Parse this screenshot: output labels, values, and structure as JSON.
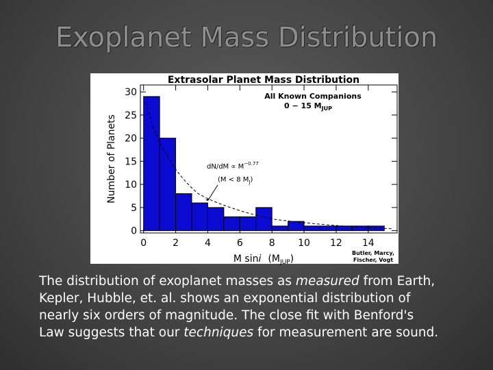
{
  "slide_title": "Exoplanet Mass Distribution",
  "caption": [
    [
      "The distribution of exoplanet masses as ",
      "measured",
      " from Earth,"
    ],
    [
      "Kepler, Hubble, et. al. shows an exponential distribution of"
    ],
    [
      "nearly six orders of magnitude. The close fit with Benford's"
    ],
    [
      "Law suggests that our ",
      "techniques",
      " for measurement are sound."
    ]
  ],
  "chart_data": {
    "type": "histogram",
    "title": "Extrasolar Planet Mass Distribution",
    "x_label": [
      "M sin",
      "i",
      "(M",
      "JUP",
      ")"
    ],
    "y_label": "Number of Planets",
    "annotations": {
      "companions": "All Known Companions",
      "range": [
        "0 − 15 M",
        "JUP"
      ],
      "fit": [
        "dN/dM ∝ M",
        "−0.77"
      ],
      "fit_range": [
        "(M < 8 M",
        "J",
        ")"
      ],
      "credit": [
        "Butler, Marcy,",
        "Fischer, Vogt"
      ]
    },
    "bins": [
      0,
      1,
      2,
      3,
      4,
      5,
      6,
      7,
      8,
      9,
      10,
      11,
      12,
      13,
      14,
      15
    ],
    "values": [
      29,
      20,
      8,
      6,
      5,
      3,
      3,
      5,
      1,
      2,
      1,
      1,
      1,
      1,
      1
    ],
    "color": "#0a0ad0",
    "xlim": [
      -0.2,
      15.8
    ],
    "xticks": [
      0,
      2,
      4,
      6,
      8,
      10,
      12,
      14
    ],
    "ylim": [
      -0.5,
      31.5
    ],
    "yticks": [
      0,
      5,
      10,
      15,
      20,
      25,
      30
    ]
  }
}
